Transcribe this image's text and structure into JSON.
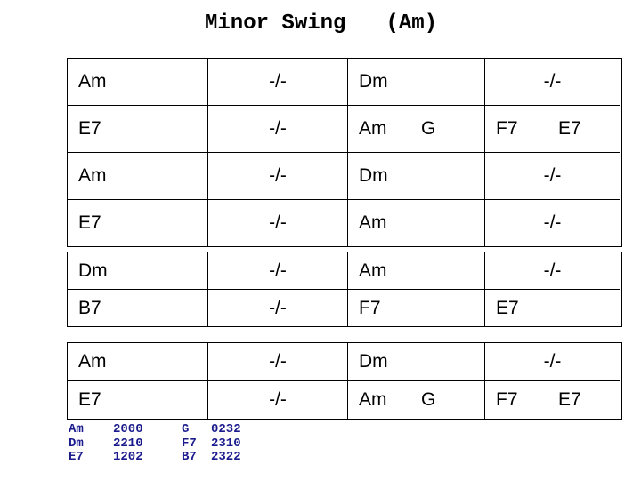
{
  "title": {
    "song": "Minor Swing",
    "key": "(Am)"
  },
  "colors": {
    "background": "#ffffff",
    "text": "#000000",
    "border": "#000000",
    "legend_text": "#1b1b8e"
  },
  "repeat_symbol": "-/-",
  "sections": [
    {
      "name": "section-a",
      "rows": [
        [
          {
            "chords": [
              "Am"
            ]
          },
          {
            "chords": [
              "-/-"
            ],
            "center": true
          },
          {
            "chords": [
              "Dm"
            ]
          },
          {
            "chords": [
              "-/-"
            ],
            "center": true
          }
        ],
        [
          {
            "chords": [
              "E7"
            ]
          },
          {
            "chords": [
              "-/-"
            ],
            "center": true
          },
          {
            "chords": [
              "Am",
              "G"
            ]
          },
          {
            "chords": [
              "F7",
              "E7"
            ]
          }
        ],
        [
          {
            "chords": [
              "Am"
            ]
          },
          {
            "chords": [
              "-/-"
            ],
            "center": true
          },
          {
            "chords": [
              "Dm"
            ]
          },
          {
            "chords": [
              "-/-"
            ],
            "center": true
          }
        ],
        [
          {
            "chords": [
              "E7"
            ]
          },
          {
            "chords": [
              "-/-"
            ],
            "center": true
          },
          {
            "chords": [
              "Am"
            ]
          },
          {
            "chords": [
              "-/-"
            ],
            "center": true
          }
        ]
      ]
    },
    {
      "name": "section-b",
      "rows": [
        [
          {
            "chords": [
              "Dm"
            ]
          },
          {
            "chords": [
              "-/-"
            ],
            "center": true
          },
          {
            "chords": [
              "Am"
            ]
          },
          {
            "chords": [
              "-/-"
            ],
            "center": true
          }
        ],
        [
          {
            "chords": [
              "B7"
            ]
          },
          {
            "chords": [
              "-/-"
            ],
            "center": true
          },
          {
            "chords": [
              "F7"
            ]
          },
          {
            "chords": [
              "E7"
            ]
          }
        ]
      ]
    },
    {
      "name": "section-repeat",
      "rows": [
        [
          {
            "chords": [
              "Am"
            ]
          },
          {
            "chords": [
              "-/-"
            ],
            "center": true
          },
          {
            "chords": [
              "Dm"
            ]
          },
          {
            "chords": [
              "-/-"
            ],
            "center": true
          }
        ],
        [
          {
            "chords": [
              "E7"
            ]
          },
          {
            "chords": [
              "-/-"
            ],
            "center": true
          },
          {
            "chords": [
              "Am",
              "G"
            ]
          },
          {
            "chords": [
              "F7",
              "E7"
            ]
          }
        ]
      ]
    }
  ],
  "legend": {
    "rows": [
      [
        "Am",
        "2000",
        "G",
        "0232"
      ],
      [
        "Dm",
        "2210",
        "F7",
        "2310"
      ],
      [
        "E7",
        "1202",
        "B7",
        "2322"
      ]
    ]
  }
}
